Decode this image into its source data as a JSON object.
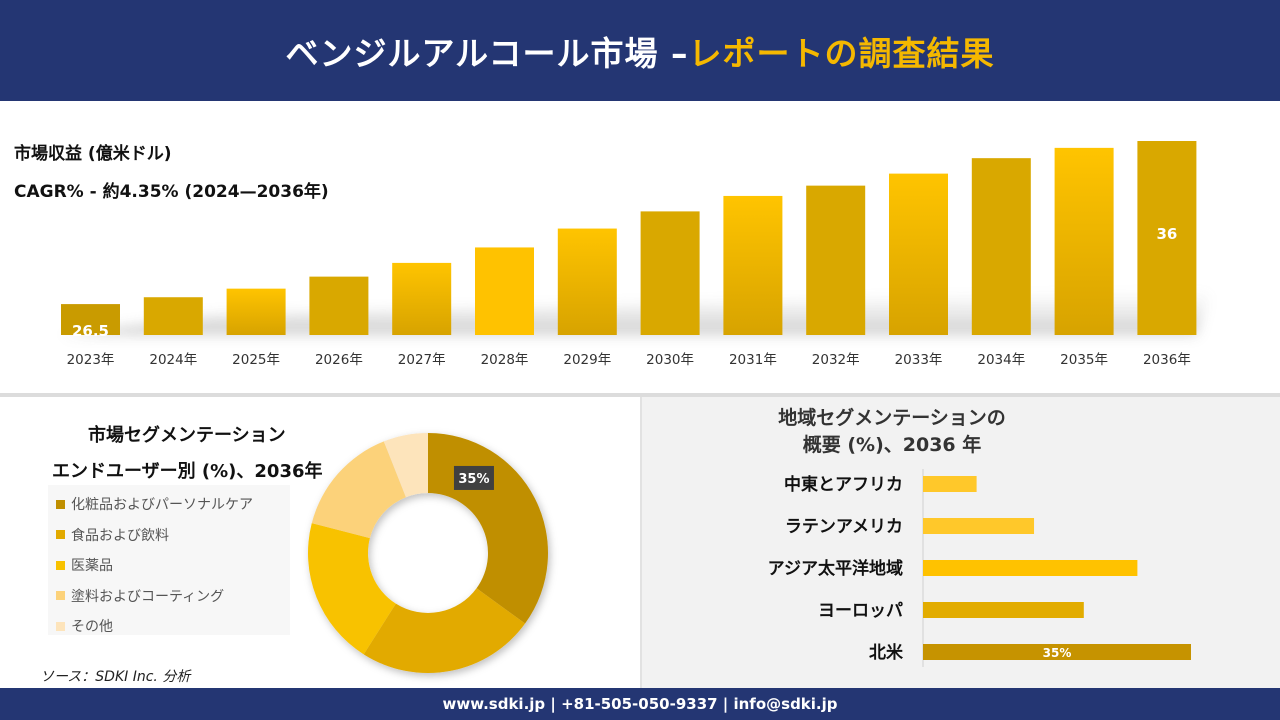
{
  "header": {
    "title_main": "ベンジルアルコール市場 –",
    "title_accent": "レポートの調査結果"
  },
  "revenue": {
    "label": "市場収益 (億米ドル)",
    "cagr": "CAGR% - 約4.35% (2024—2036年)"
  },
  "segmentation": {
    "title_line1": "市場セグメンテーション",
    "title_line2": "エンドユーザー別 (%)、2036年"
  },
  "regional": {
    "title_line1": "地域セグメンテーションの",
    "title_line2": "概要 (%)、2036 年"
  },
  "source": "ソース：SDKI Inc. 分析",
  "footer": {
    "contact": "www.sdki.jp | +81-505-050-9337 | info@sdki.jp"
  },
  "colors": {
    "navy": "#243673",
    "accent": "#f5b800",
    "bar_gold": "#f2b600",
    "bar_dark": "#c69600"
  },
  "chart_data": [
    {
      "type": "bar",
      "title": "市場収益 (億米ドル)",
      "categories": [
        "2023年",
        "2024年",
        "2025年",
        "2026年",
        "2027年",
        "2028年",
        "2029年",
        "2030年",
        "2031年",
        "2032年",
        "2033年",
        "2034年",
        "2035年",
        "2036年"
      ],
      "values": [
        26.5,
        26.9,
        27.4,
        28.1,
        28.9,
        29.8,
        30.9,
        31.9,
        32.8,
        33.4,
        34.1,
        35.0,
        35.6,
        36
      ],
      "data_labels": [
        "26.5",
        "",
        "",
        "",
        "",
        "",
        "",
        "",
        "",
        "",
        "",
        "",
        "",
        "36"
      ],
      "ylim": [
        24.7,
        36
      ]
    },
    {
      "type": "pie",
      "title": "市場セグメンテーション エンドユーザー別 (%)、2036年",
      "categories": [
        "化粧品およびパーソナルケア",
        "食品および飲料",
        "医薬品",
        "塗料およびコーティング",
        "その他"
      ],
      "values": [
        35,
        24,
        20,
        15,
        6
      ],
      "data_labels": [
        "35%",
        "",
        "",
        "",
        ""
      ],
      "colors": [
        "#c08f00",
        "#e2aa00",
        "#f8c200",
        "#fcd27a",
        "#fde4bb"
      ]
    },
    {
      "type": "bar",
      "orientation": "horizontal",
      "title": "地域セグメンテーションの概要 (%)、2036 年",
      "categories": [
        "中東とアフリカ",
        "ラテンアメリカ",
        "アジア太平洋地域",
        "ヨーロッパ",
        "北米"
      ],
      "values": [
        7,
        14.5,
        28,
        21,
        35
      ],
      "data_labels": [
        "",
        "",
        "",
        "",
        "35%"
      ],
      "xlim": [
        0,
        35
      ]
    }
  ]
}
